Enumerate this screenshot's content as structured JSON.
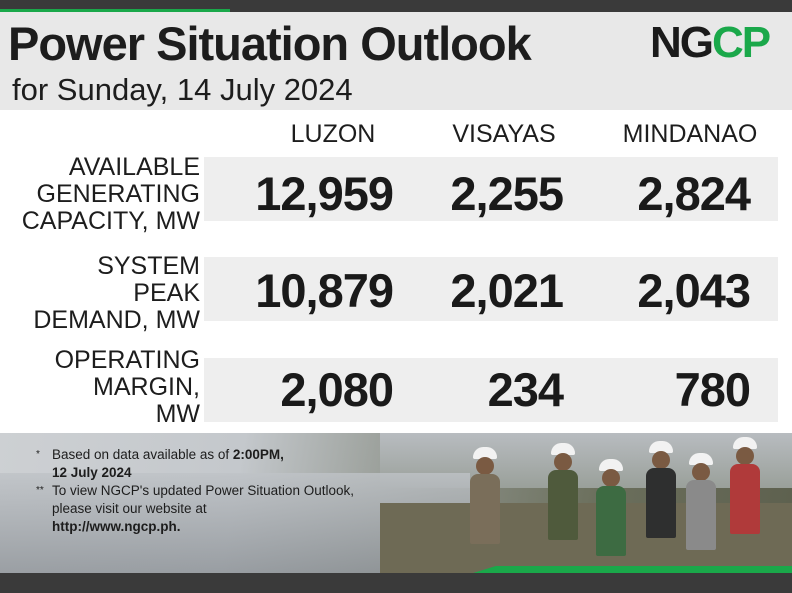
{
  "header": {
    "title": "Power Situation Outlook",
    "subtitle": "for Sunday, 14 July 2024",
    "logo_left": "NG",
    "logo_right": "CP"
  },
  "columns": [
    "LUZON",
    "VISAYAS",
    "MINDANAO"
  ],
  "rows": [
    {
      "label_lines": [
        "AVAILABLE",
        "GENERATING",
        "CAPACITY, MW"
      ],
      "values": [
        "12,959",
        "2,255",
        "2,824"
      ]
    },
    {
      "label_lines": [
        "SYSTEM",
        "PEAK",
        "DEMAND, MW"
      ],
      "values": [
        "10,879",
        "2,021",
        "2,043"
      ]
    },
    {
      "label_lines": [
        "OPERATING",
        "MARGIN,",
        "MW"
      ],
      "values": [
        "2,080",
        "234",
        "780"
      ]
    }
  ],
  "notes": {
    "note1_mark": "*",
    "note1_text": "Based on data available as of ",
    "note1_bold": "2:00PM,",
    "note1_line2": "12 July 2024",
    "note2_mark": "**",
    "note2_text": "To view NGCP's updated Power Situation Outlook, please visit our website at",
    "note2_url": "http://www.ngcp.ph."
  },
  "colors": {
    "brand_green": "#1aa84a",
    "bar_dark": "#3a3a3a",
    "band_gray": "#eeeeee"
  }
}
